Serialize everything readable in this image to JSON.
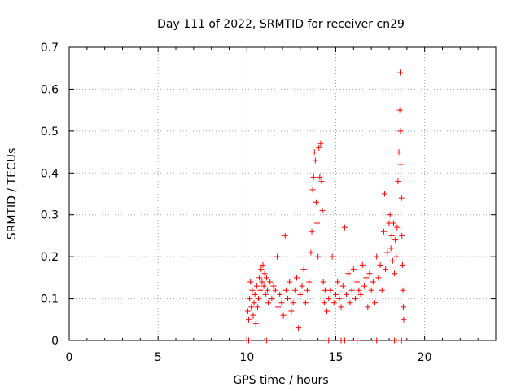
{
  "chart_data": {
    "type": "scatter",
    "title": "Day 111 of 2022, SRMTID for receiver cn29",
    "xlabel": "GPS time / hours",
    "ylabel": "SRMTID / TECUs",
    "xlim": [
      0,
      24
    ],
    "ylim": [
      0,
      0.7
    ],
    "x_ticks": [
      0,
      5,
      10,
      15,
      20
    ],
    "y_ticks": [
      0,
      0.1,
      0.2,
      0.3,
      0.4,
      0.5,
      0.6,
      0.7
    ],
    "x_tick_labels": [
      "0",
      "5",
      "10",
      "15",
      "20"
    ],
    "y_tick_labels": [
      "0",
      "0.1",
      "0.2",
      "0.3",
      "0.4",
      "0.5",
      "0.6",
      "0.7"
    ],
    "grid": true,
    "marker": "+",
    "color": "#ff0000",
    "series": [
      {
        "name": "SRMTID",
        "points": [
          [
            10.05,
            0.07
          ],
          [
            10.1,
            0.05
          ],
          [
            10.15,
            0.1
          ],
          [
            10.2,
            0.14
          ],
          [
            10.25,
            0.08
          ],
          [
            10.3,
            0.12
          ],
          [
            10.35,
            0.06
          ],
          [
            10.4,
            0.09
          ],
          [
            10.45,
            0.11
          ],
          [
            10.5,
            0.04
          ],
          [
            10.55,
            0.13
          ],
          [
            10.6,
            0.08
          ],
          [
            10.65,
            0.1
          ],
          [
            10.7,
            0.15
          ],
          [
            10.75,
            0.12
          ],
          [
            10.8,
            0.17
          ],
          [
            10.85,
            0.14
          ],
          [
            10.9,
            0.18
          ],
          [
            10.95,
            0.13
          ],
          [
            11.0,
            0.16
          ],
          [
            11.05,
            0.11
          ],
          [
            11.1,
            0.15
          ],
          [
            11.15,
            0.12
          ],
          [
            11.2,
            0.09
          ],
          [
            11.3,
            0.14
          ],
          [
            11.4,
            0.1
          ],
          [
            11.5,
            0.13
          ],
          [
            11.6,
            0.12
          ],
          [
            11.7,
            0.2
          ],
          [
            11.75,
            0.08
          ],
          [
            11.85,
            0.11
          ],
          [
            11.95,
            0.09
          ],
          [
            12.05,
            0.06
          ],
          [
            12.15,
            0.25
          ],
          [
            12.2,
            0.12
          ],
          [
            12.3,
            0.1
          ],
          [
            12.4,
            0.14
          ],
          [
            12.5,
            0.07
          ],
          [
            12.6,
            0.09
          ],
          [
            12.7,
            0.12
          ],
          [
            12.8,
            0.15
          ],
          [
            12.9,
            0.03
          ],
          [
            13.0,
            0.11
          ],
          [
            13.1,
            0.13
          ],
          [
            13.2,
            0.17
          ],
          [
            13.3,
            0.09
          ],
          [
            13.4,
            0.12
          ],
          [
            13.5,
            0.14
          ],
          [
            13.6,
            0.21
          ],
          [
            13.65,
            0.26
          ],
          [
            13.7,
            0.36
          ],
          [
            13.75,
            0.39
          ],
          [
            13.8,
            0.45
          ],
          [
            13.85,
            0.43
          ],
          [
            13.9,
            0.33
          ],
          [
            13.95,
            0.28
          ],
          [
            14.0,
            0.2
          ],
          [
            14.05,
            0.46
          ],
          [
            14.1,
            0.39
          ],
          [
            14.15,
            0.47
          ],
          [
            14.2,
            0.38
          ],
          [
            14.25,
            0.31
          ],
          [
            14.3,
            0.14
          ],
          [
            14.35,
            0.09
          ],
          [
            14.4,
            0.12
          ],
          [
            14.5,
            0.07
          ],
          [
            14.6,
            0.1
          ],
          [
            14.7,
            0.12
          ],
          [
            14.8,
            0.2
          ],
          [
            14.9,
            0.09
          ],
          [
            15.0,
            0.11
          ],
          [
            15.1,
            0.14
          ],
          [
            15.2,
            0.1
          ],
          [
            15.3,
            0.08
          ],
          [
            15.4,
            0.13
          ],
          [
            15.5,
            0.27
          ],
          [
            15.6,
            0.11
          ],
          [
            15.7,
            0.16
          ],
          [
            15.8,
            0.09
          ],
          [
            15.9,
            0.12
          ],
          [
            16.0,
            0.17
          ],
          [
            16.1,
            0.1
          ],
          [
            16.2,
            0.14
          ],
          [
            16.3,
            0.12
          ],
          [
            16.4,
            0.11
          ],
          [
            16.5,
            0.18
          ],
          [
            16.6,
            0.13
          ],
          [
            16.7,
            0.15
          ],
          [
            16.8,
            0.08
          ],
          [
            16.9,
            0.16
          ],
          [
            17.0,
            0.12
          ],
          [
            17.1,
            0.14
          ],
          [
            17.2,
            0.09
          ],
          [
            17.3,
            0.2
          ],
          [
            17.4,
            0.15
          ],
          [
            17.5,
            0.18
          ],
          [
            17.6,
            0.12
          ],
          [
            17.7,
            0.26
          ],
          [
            17.75,
            0.35
          ],
          [
            17.8,
            0.17
          ],
          [
            17.9,
            0.21
          ],
          [
            18.0,
            0.28
          ],
          [
            18.05,
            0.3
          ],
          [
            18.1,
            0.22
          ],
          [
            18.15,
            0.25
          ],
          [
            18.2,
            0.19
          ],
          [
            18.25,
            0.28
          ],
          [
            18.3,
            0.16
          ],
          [
            18.35,
            0.24
          ],
          [
            18.4,
            0.2
          ],
          [
            18.45,
            0.27
          ],
          [
            18.5,
            0.38
          ],
          [
            18.55,
            0.45
          ],
          [
            18.6,
            0.55
          ],
          [
            18.62,
            0.64
          ],
          [
            18.64,
            0.5
          ],
          [
            18.66,
            0.42
          ],
          [
            18.7,
            0.34
          ],
          [
            18.72,
            0.25
          ],
          [
            18.75,
            0.18
          ],
          [
            18.78,
            0.12
          ],
          [
            18.8,
            0.08
          ],
          [
            18.82,
            0.05
          ]
        ]
      }
    ],
    "zero_markers_x": [
      10.0,
      10.1,
      11.1,
      14.6,
      15.3,
      15.5,
      16.2,
      17.3,
      18.3,
      18.4,
      18.7
    ]
  }
}
